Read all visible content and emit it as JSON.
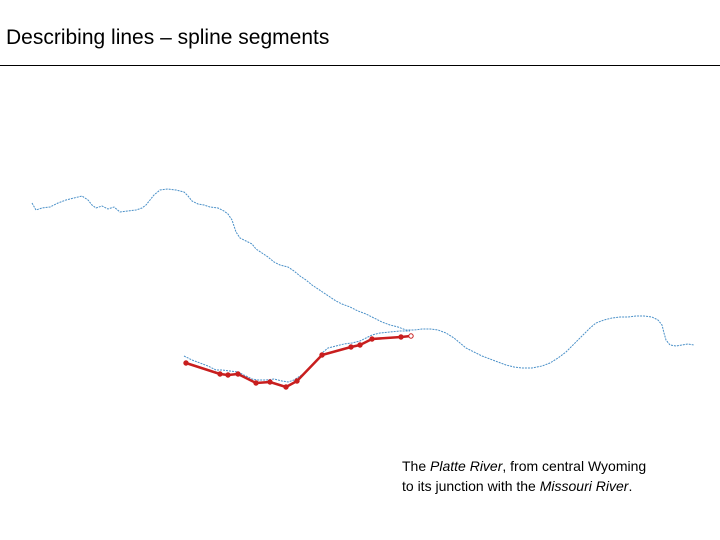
{
  "slide": {
    "title": "Describing lines – spline segments"
  },
  "caption": {
    "line1_prefix": "The ",
    "line1_river": "Platte River",
    "line1_suffix": ", from central Wyoming",
    "line2_prefix": "to its junction with the ",
    "line2_river": "Missouri River",
    "line2_suffix": "."
  },
  "colors": {
    "river": "#4a90c8",
    "spline": "#c81e1e",
    "node": "#c81e1e"
  }
}
